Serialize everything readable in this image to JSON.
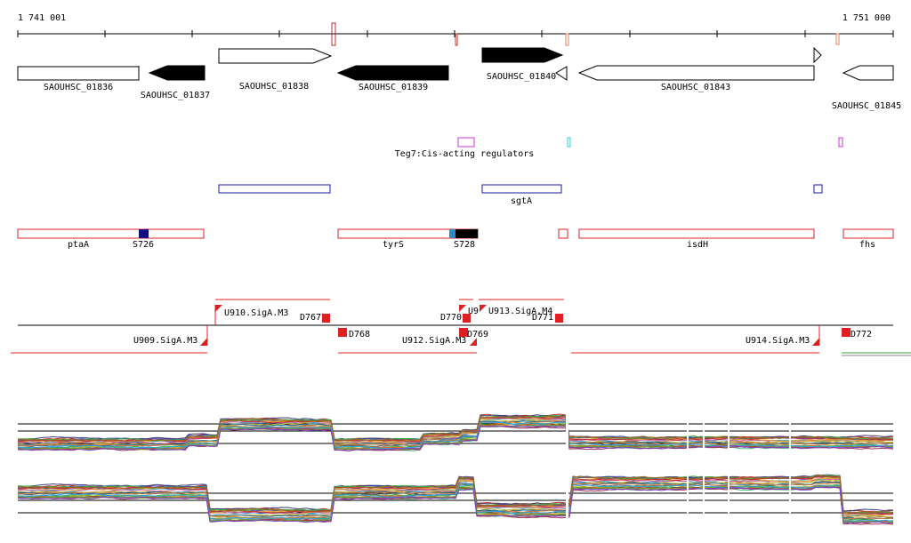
{
  "coords": {
    "start": "1 741 001",
    "end": "1 751 000"
  },
  "genes": [
    {
      "label": "SAOUHSC_01836",
      "strand": "+",
      "filled": false
    },
    {
      "label": "SAOUHSC_01837",
      "strand": "-",
      "filled": true
    },
    {
      "label": "SAOUHSC_01838",
      "strand": "+",
      "filled": false
    },
    {
      "label": "SAOUHSC_01839",
      "strand": "-",
      "filled": true
    },
    {
      "label": "SAOUHSC_01840",
      "strand": "+",
      "filled": true
    },
    {
      "label": "SAOUHSC_01843",
      "strand": "-",
      "filled": false
    },
    {
      "label": "SAOUHSC_01845",
      "strand": "-",
      "filled": false
    }
  ],
  "regulators": {
    "label": "Teg7:Cis-acting regulators"
  },
  "blue_features": [
    {
      "label": ""
    },
    {
      "label": "sgtA"
    },
    {
      "label": ""
    }
  ],
  "operons": [
    {
      "label": "ptaA"
    },
    {
      "label": "S726"
    },
    {
      "label": "tyrS"
    },
    {
      "label": "S728"
    },
    {
      "label": ""
    },
    {
      "label": "isdH"
    },
    {
      "label": "fhs"
    }
  ],
  "transcripts": [
    {
      "label": "U910.SigA.M3"
    },
    {
      "label": "D767"
    },
    {
      "label": "U9"
    },
    {
      "label": "U913.SigA.M4"
    },
    {
      "label": "D770"
    },
    {
      "label": "D771"
    },
    {
      "label": "U909.SigA.M3"
    },
    {
      "label": "D768"
    },
    {
      "label": "U912.SigA.M3"
    },
    {
      "label": "D769"
    },
    {
      "label": "U914.SigA.M3"
    },
    {
      "label": "D772"
    }
  ],
  "colors": {
    "gene_stroke": "#000000",
    "operon_red": "#e02020",
    "feature_blue": "#1a1aa6",
    "regulator_magenta": "#cc33cc",
    "regulator_cyan": "#33cccc",
    "s726_blue": "#101080",
    "s728_black": "#000000",
    "s728_cyan": "#2a8ad0"
  }
}
